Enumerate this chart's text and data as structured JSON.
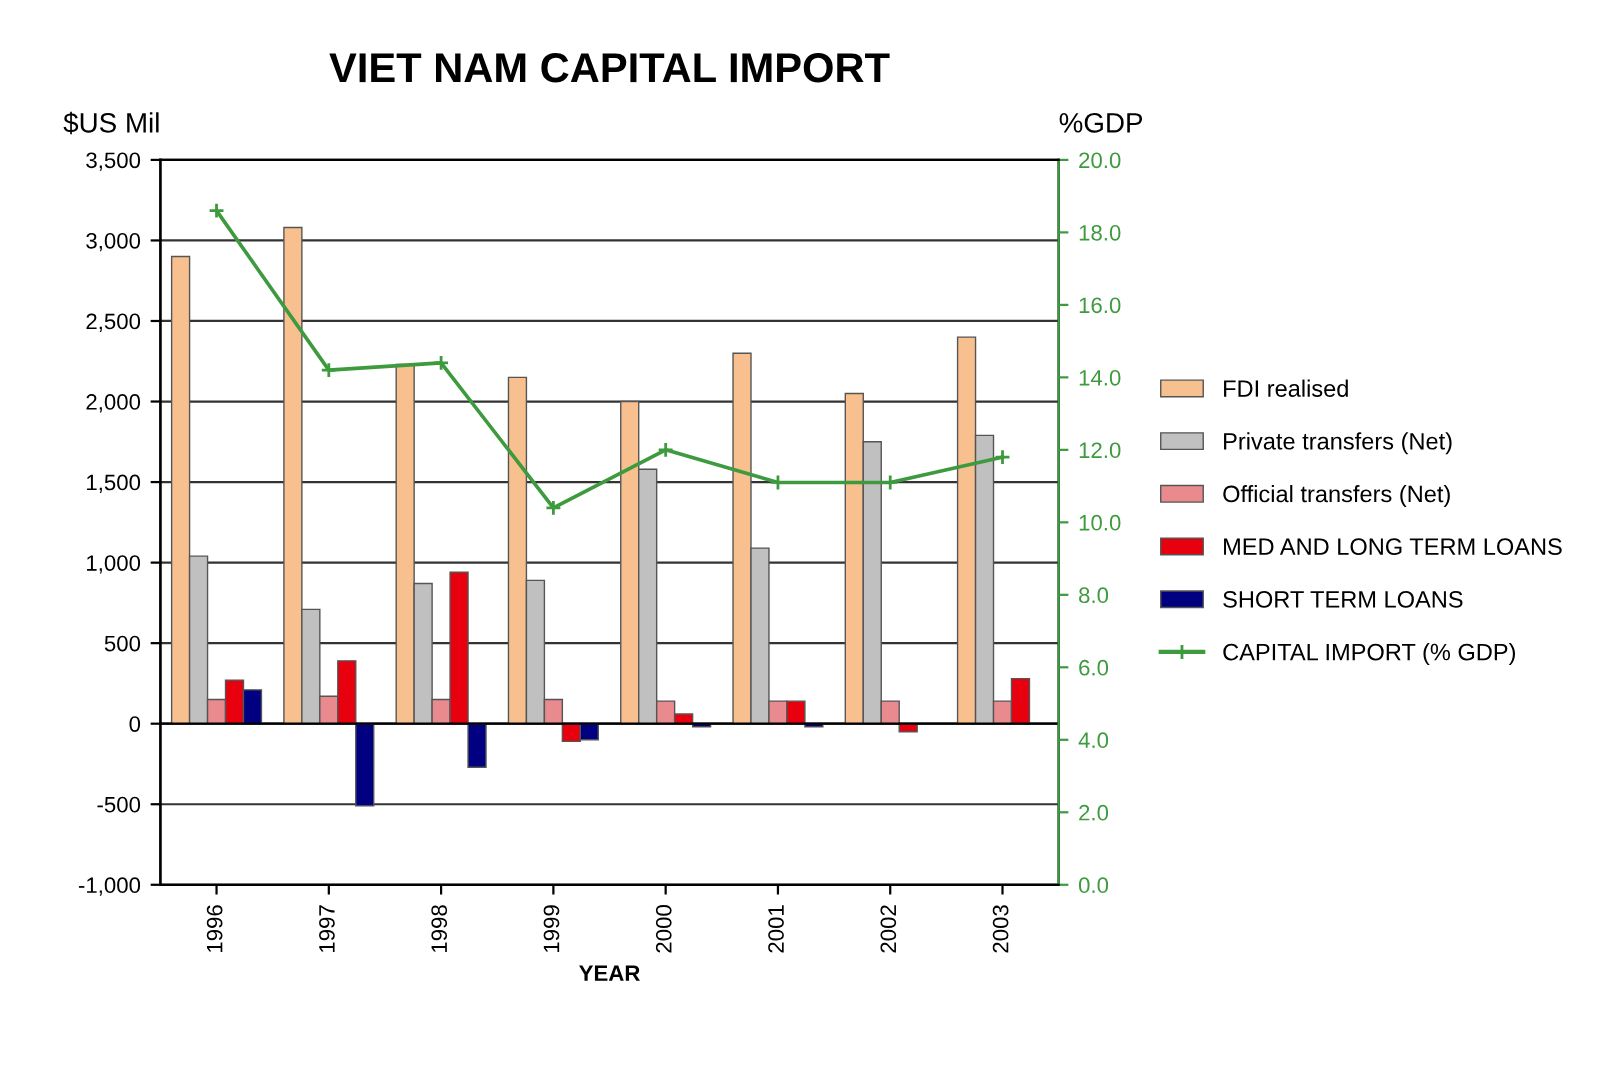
{
  "chart_data": {
    "type": "bar",
    "title": "VIET NAM CAPITAL IMPORT",
    "xlabel": "YEAR",
    "ylabel": "$US Mil",
    "y2label": "%GDP",
    "categories": [
      "1996",
      "1997",
      "1998",
      "1999",
      "2000",
      "2001",
      "2002",
      "2003"
    ],
    "series": [
      {
        "name": "FDI realised",
        "color": "#f9c08f",
        "values": [
          2900,
          3080,
          2230,
          2150,
          2000,
          2300,
          2050,
          2400
        ]
      },
      {
        "name": "Private transfers (Net)",
        "color": "#c0c0c0",
        "values": [
          1040,
          710,
          870,
          890,
          1580,
          1090,
          1750,
          1790
        ]
      },
      {
        "name": "Official transfers (Net)",
        "color": "#e98a8f",
        "values": [
          150,
          170,
          150,
          150,
          140,
          140,
          140,
          140
        ]
      },
      {
        "name": "MED AND LONG TERM LOANS",
        "color": "#e8000f",
        "values": [
          270,
          390,
          940,
          -110,
          60,
          140,
          -50,
          280
        ]
      },
      {
        "name": "SHORT TERM LOANS",
        "color": "#000080",
        "values": [
          210,
          -510,
          -270,
          -100,
          -20,
          -20,
          null,
          null
        ]
      },
      {
        "name": "CAPITAL IMPORT (% GDP)",
        "color": "#3e9a3e",
        "type": "line",
        "axis": "y2",
        "marker": "cross",
        "values": [
          18.6,
          14.2,
          14.4,
          10.4,
          12.0,
          11.1,
          11.1,
          11.8
        ]
      }
    ],
    "ylim": [
      -1000,
      3500
    ],
    "yticks": [
      {
        "value": -1000,
        "label": "-1,000"
      },
      -500,
      0,
      500,
      {
        "value": 1000,
        "label": "1,000"
      },
      {
        "value": 1500,
        "label": "1,500"
      },
      {
        "value": 2000,
        "label": "2,000"
      },
      {
        "value": 2500,
        "label": "2,500"
      },
      {
        "value": 3000,
        "label": "3,000"
      },
      {
        "value": 3500,
        "label": "3,500"
      }
    ],
    "y2lim": [
      0,
      20
    ],
    "y2ticks": [
      {
        "value": 0,
        "label": "0.0"
      },
      {
        "value": 2,
        "label": "2.0"
      },
      {
        "value": 4,
        "label": "4.0"
      },
      {
        "value": 6,
        "label": "6.0"
      },
      {
        "value": 8,
        "label": "8.0"
      },
      {
        "value": 10,
        "label": "10.0"
      },
      {
        "value": 12,
        "label": "12.0"
      },
      {
        "value": 14,
        "label": "14.0"
      },
      {
        "value": 16,
        "label": "16.0"
      },
      {
        "value": 18,
        "label": "18.0"
      },
      {
        "value": 20,
        "label": "20.0"
      }
    ],
    "grid": "y",
    "legend": "right"
  }
}
